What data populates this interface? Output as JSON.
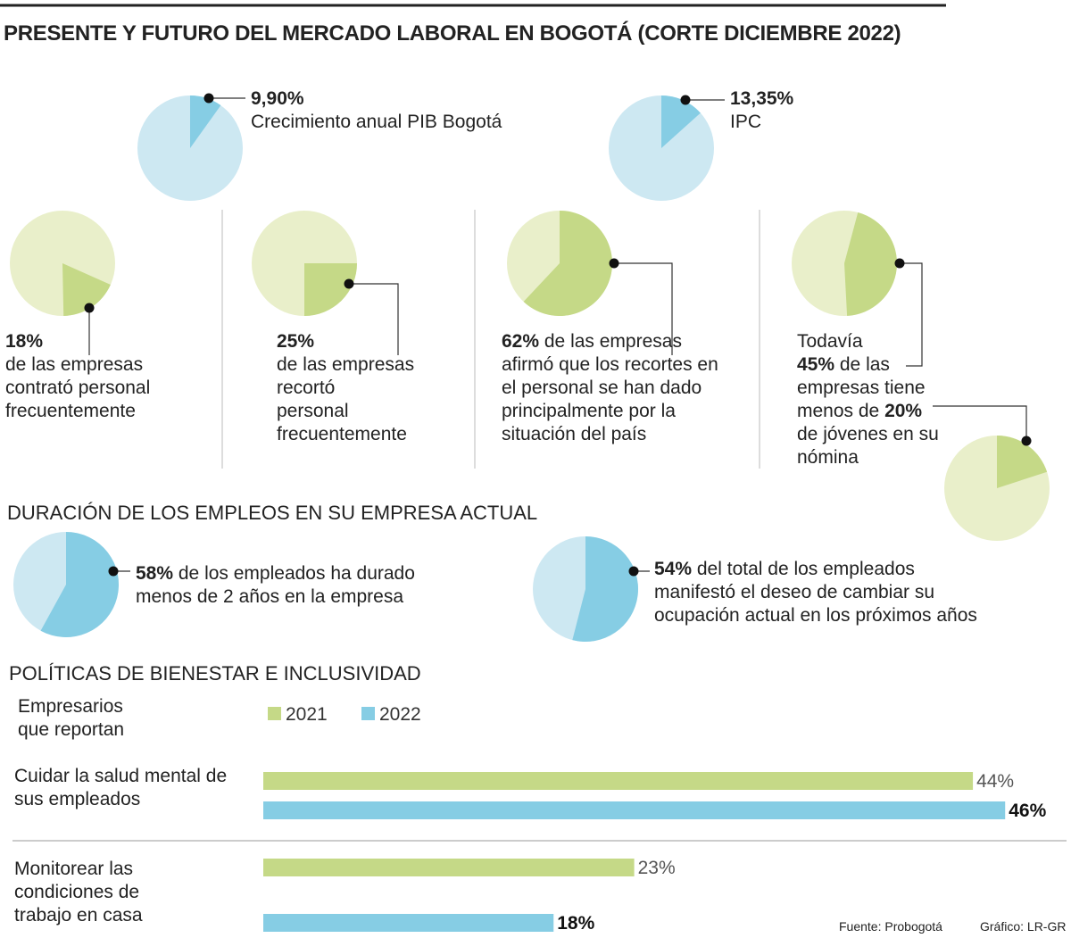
{
  "title": "PRESENTE Y FUTURO DEL MERCADO LABORAL EN BOGOTÁ (CORTE DICIEMBRE 2022)",
  "section_duration": "DURACIÓN DE LOS EMPLEOS EN SU EMPRESA ACTUAL",
  "section_policies": "POLÍTICAS DE BIENESTAR E INCLUSIVIDAD",
  "source": "Fuente: Probogotá",
  "credit": "Gráfico: LR-GR",
  "chart_data": [
    {
      "type": "pie",
      "values": [
        9.9
      ],
      "value_labels": [
        "9,90%"
      ],
      "color": "#86cde4",
      "caption": [
        "Crecimiento anual PIB Bogotá"
      ]
    },
    {
      "type": "pie",
      "values": [
        13.35
      ],
      "value_labels": [
        "13,35%"
      ],
      "color": "#86cde4",
      "caption": [
        "IPC"
      ]
    },
    {
      "type": "pie",
      "values": [
        18
      ],
      "value_labels": [
        "18%"
      ],
      "color": "#c5d987",
      "caption": [
        "de las empresas",
        "contrató personal",
        "frecuentemente"
      ]
    },
    {
      "type": "pie",
      "values": [
        25
      ],
      "value_labels": [
        "25%"
      ],
      "color": "#c5d987",
      "caption": [
        "de las empresas",
        "recortó",
        "personal",
        "frecuentemente"
      ]
    },
    {
      "type": "pie",
      "values": [
        62
      ],
      "value_labels": [
        "62%"
      ],
      "color": "#c5d987",
      "caption": [
        "de las empresas",
        "afirmó que los recortes en",
        "el personal se han dado",
        "principalmente por la",
        "situación del país"
      ]
    },
    {
      "type": "pie",
      "values": [
        45
      ],
      "value_labels": [
        "45%"
      ],
      "color": "#c5d987",
      "caption_before": [
        "Todavía"
      ],
      "caption": [
        "de las",
        "empresas tiene",
        "menos de"
      ]
    },
    {
      "type": "pie",
      "values": [
        20
      ],
      "value_labels": [
        "20%"
      ],
      "color": "#c5d987",
      "caption": [
        "de jóvenes en su",
        "nómina"
      ]
    },
    {
      "type": "pie",
      "values": [
        58
      ],
      "value_labels": [
        "58%"
      ],
      "color": "#86cde4",
      "caption": [
        "de los empleados ha durado",
        "menos de 2 años en la empresa"
      ]
    },
    {
      "type": "pie",
      "values": [
        54
      ],
      "value_labels": [
        "54%"
      ],
      "color": "#86cde4",
      "caption": [
        "del total de los empleados",
        "manifestó el deseo de cambiar su",
        "ocupación actual en los próximos años"
      ]
    },
    {
      "type": "bar",
      "orientation": "horizontal",
      "legend_title": [
        "Empresarios",
        "que reportan"
      ],
      "categories": [
        "Cuidar la salud mental de sus empleados",
        "Monitorear las condiciones de trabajo en casa"
      ],
      "series": [
        {
          "name": "2021",
          "color": "#c5d987",
          "values": [
            44,
            23
          ],
          "value_labels": [
            "44%",
            "23%"
          ]
        },
        {
          "name": "2022",
          "color": "#86cde4",
          "values": [
            46,
            18
          ],
          "value_labels": [
            "46%",
            "18%"
          ]
        }
      ]
    }
  ]
}
